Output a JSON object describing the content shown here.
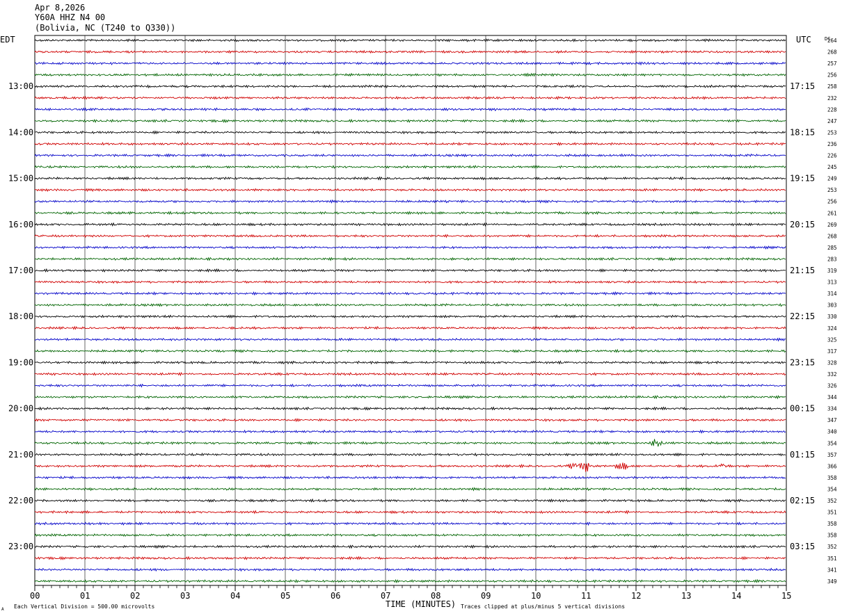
{
  "header": {
    "date": "Apr 8,2026",
    "station": "Y60A HHZ N4 00",
    "location": "(Bolivia, NC (T240 to Q330))"
  },
  "labels": {
    "left_zone": "EDT",
    "right_zone": "UTC",
    "dc_header": "DC",
    "xlabel": "TIME (MINUTES)",
    "scale_note": "Each Vertical Division =  500.00 microvolts",
    "clip_note": "Traces clipped at plus/minus 5 vertical divisions",
    "corner_mark": "A"
  },
  "colors": {
    "trace_cycle": [
      "#000000",
      "#d00000",
      "#0000c8",
      "#006400"
    ],
    "grid": "#000000",
    "background": "#ffffff"
  },
  "chart_data": {
    "type": "line",
    "title": "Y60A HHZ N4 00",
    "xlabel": "TIME (MINUTES)",
    "x_ticks": [
      "00",
      "01",
      "02",
      "03",
      "04",
      "05",
      "06",
      "07",
      "08",
      "09",
      "10",
      "11",
      "12",
      "13",
      "14",
      "15"
    ],
    "xlim": [
      0,
      15
    ],
    "rows_per_hour": 4,
    "left_hour_labels": [
      "13:00",
      "14:00",
      "15:00",
      "16:00",
      "17:00",
      "18:00",
      "19:00",
      "20:00",
      "21:00",
      "22:00",
      "23:00"
    ],
    "right_hour_labels": [
      "17:15",
      "18:15",
      "19:15",
      "20:15",
      "21:15",
      "22:15",
      "23:15",
      "00:15",
      "01:15",
      "02:15",
      "03:15"
    ],
    "dc_offsets": [
      264,
      268,
      257,
      256,
      258,
      232,
      228,
      247,
      253,
      236,
      226,
      245,
      249,
      253,
      256,
      261,
      269,
      268,
      285,
      283,
      319,
      313,
      314,
      303,
      330,
      324,
      325,
      317,
      328,
      332,
      326,
      344,
      334,
      347,
      340,
      354,
      357,
      366,
      358,
      354,
      352,
      351,
      358,
      358,
      352,
      351,
      341,
      349
    ],
    "events": [
      {
        "row": 35,
        "minute": 12.4,
        "amplitude": "moderate"
      },
      {
        "row": 37,
        "minute": 10.8,
        "amplitude": "moderate"
      },
      {
        "row": 37,
        "minute": 11.0,
        "amplitude": "large"
      },
      {
        "row": 37,
        "minute": 11.7,
        "amplitude": "moderate"
      },
      {
        "row": 37,
        "minute": 13.7,
        "amplitude": "small"
      }
    ]
  }
}
